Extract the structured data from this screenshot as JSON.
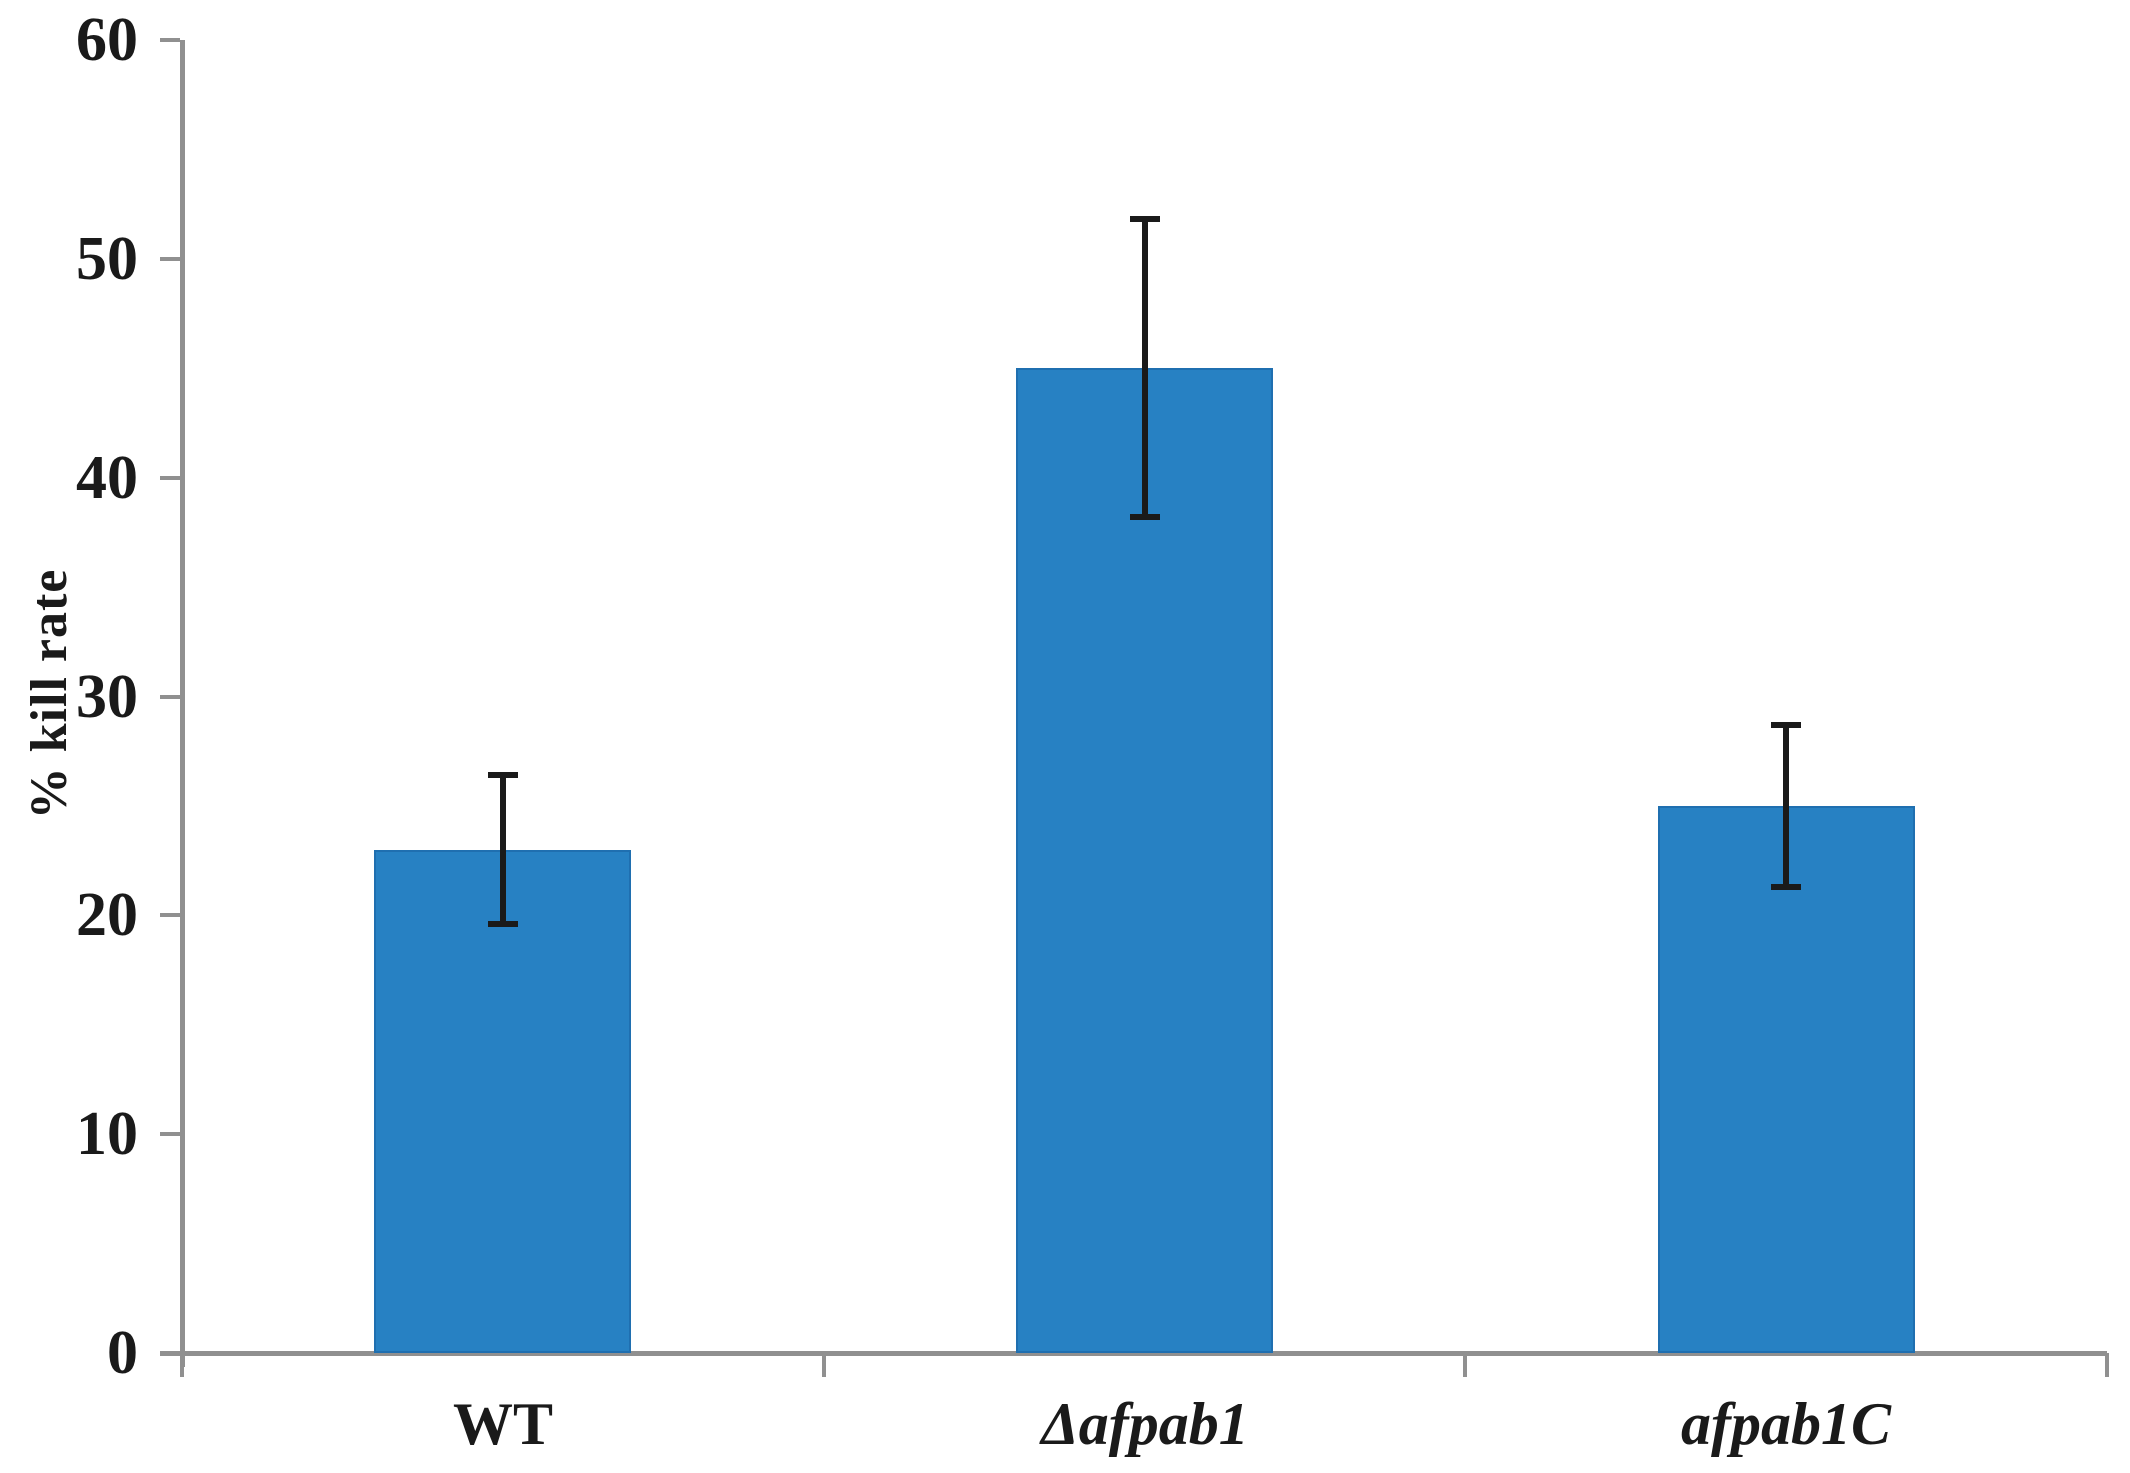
{
  "chart_data": {
    "type": "bar",
    "title": "",
    "xlabel": "",
    "ylabel": "% kill rate",
    "categories": [
      "WT",
      "Δafpab1",
      "afpab1C"
    ],
    "values": [
      23,
      45,
      25
    ],
    "errors": [
      3.4,
      6.8,
      3.7
    ],
    "category_label_styles": [
      "normal",
      "italic",
      "italic"
    ],
    "ylim": [
      0,
      60
    ],
    "yticks": [
      0,
      10,
      20,
      30,
      40,
      50,
      60
    ],
    "grid": false,
    "legend_position": "none",
    "bar_color": "#2781c3",
    "bar_border_color": "#1f6fb0",
    "error_bar_color": "#1a1a1a",
    "axis_color": "#909090",
    "text_color": "#1a1a1a"
  }
}
